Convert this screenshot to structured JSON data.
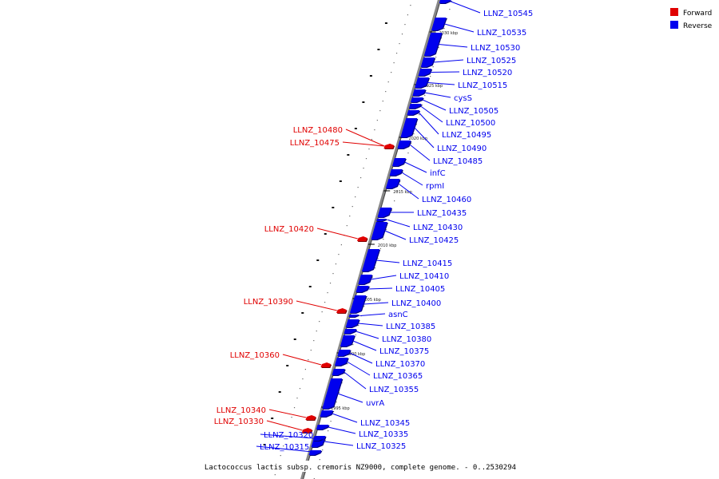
{
  "legend": {
    "forward_label": "Forward",
    "reverse_label": "Reverse",
    "forward_color": "#e00000",
    "reverse_color": "#0000ee"
  },
  "caption": "Lactococcus lactis subsp. cremoris NZ9000, complete genome. - 0..2530294",
  "ticks": [
    "2030 kbp",
    "2025 kbp",
    "2020 kbp",
    "2015 kbp",
    "2010 kbp",
    "2005 kbp",
    "2000 kbp",
    "1995 kbp"
  ],
  "genes": [
    {
      "name": "LLNZ_10545",
      "strand": "reverse"
    },
    {
      "name": "LLNZ_10535",
      "strand": "reverse"
    },
    {
      "name": "LLNZ_10530",
      "strand": "reverse"
    },
    {
      "name": "LLNZ_10525",
      "strand": "reverse"
    },
    {
      "name": "LLNZ_10520",
      "strand": "reverse"
    },
    {
      "name": "LLNZ_10515",
      "strand": "reverse"
    },
    {
      "name": "cysS",
      "strand": "reverse"
    },
    {
      "name": "LLNZ_10505",
      "strand": "reverse"
    },
    {
      "name": "LLNZ_10500",
      "strand": "reverse"
    },
    {
      "name": "LLNZ_10495",
      "strand": "reverse"
    },
    {
      "name": "LLNZ_10490",
      "strand": "reverse"
    },
    {
      "name": "LLNZ_10485",
      "strand": "reverse"
    },
    {
      "name": "infC",
      "strand": "reverse"
    },
    {
      "name": "rpmI",
      "strand": "reverse"
    },
    {
      "name": "LLNZ_10460",
      "strand": "reverse"
    },
    {
      "name": "LLNZ_10435",
      "strand": "reverse"
    },
    {
      "name": "LLNZ_10430",
      "strand": "reverse"
    },
    {
      "name": "LLNZ_10425",
      "strand": "reverse"
    },
    {
      "name": "LLNZ_10415",
      "strand": "reverse"
    },
    {
      "name": "LLNZ_10410",
      "strand": "reverse"
    },
    {
      "name": "LLNZ_10405",
      "strand": "reverse"
    },
    {
      "name": "LLNZ_10400",
      "strand": "reverse"
    },
    {
      "name": "asnC",
      "strand": "reverse"
    },
    {
      "name": "LLNZ_10385",
      "strand": "reverse"
    },
    {
      "name": "LLNZ_10380",
      "strand": "reverse"
    },
    {
      "name": "LLNZ_10375",
      "strand": "reverse"
    },
    {
      "name": "LLNZ_10370",
      "strand": "reverse"
    },
    {
      "name": "LLNZ_10365",
      "strand": "reverse"
    },
    {
      "name": "LLNZ_10355",
      "strand": "reverse"
    },
    {
      "name": "uvrA",
      "strand": "reverse"
    },
    {
      "name": "LLNZ_10345",
      "strand": "reverse"
    },
    {
      "name": "LLNZ_10335",
      "strand": "reverse"
    },
    {
      "name": "LLNZ_10325",
      "strand": "reverse"
    },
    {
      "name": "LLNZ_10320",
      "strand": "reverse"
    },
    {
      "name": "LLNZ_10315",
      "strand": "reverse"
    },
    {
      "name": "LLNZ_10480",
      "strand": "forward"
    },
    {
      "name": "LLNZ_10475",
      "strand": "forward"
    },
    {
      "name": "LLNZ_10420",
      "strand": "forward"
    },
    {
      "name": "LLNZ_10390",
      "strand": "forward"
    },
    {
      "name": "LLNZ_10360",
      "strand": "forward"
    },
    {
      "name": "LLNZ_10340",
      "strand": "forward"
    },
    {
      "name": "LLNZ_10330",
      "strand": "forward"
    }
  ]
}
